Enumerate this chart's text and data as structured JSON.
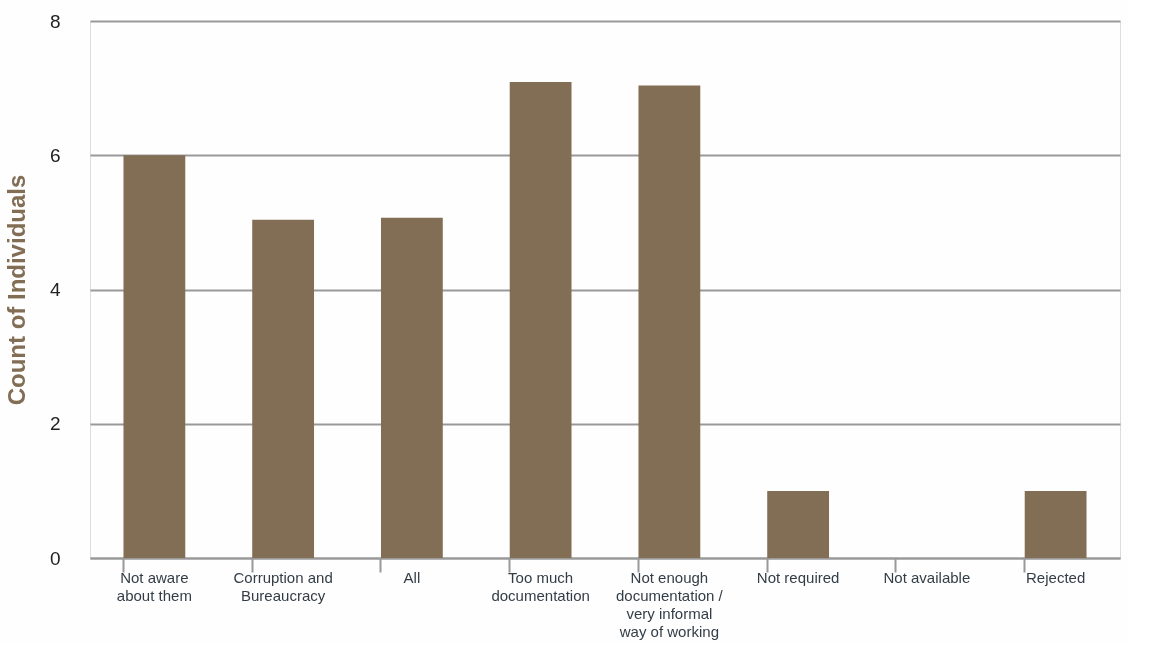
{
  "chart_data": {
    "type": "bar",
    "ylabel": "Count of Individuals",
    "categories": [
      "Not aware\nabout them",
      "Corruption and\nBureaucracy",
      "All",
      "Too much\ndocumentation",
      "Not enough\ndocumentation /\nvery informal\nway of working",
      "Not required",
      "Not available",
      "Rejected"
    ],
    "values": [
      6,
      5.04,
      5.07,
      7.09,
      7.04,
      1,
      0,
      1
    ],
    "color": "#826d55",
    "ylim": [
      0,
      8
    ],
    "yticks": [
      0,
      2,
      4,
      6,
      8
    ],
    "grid": "y"
  }
}
